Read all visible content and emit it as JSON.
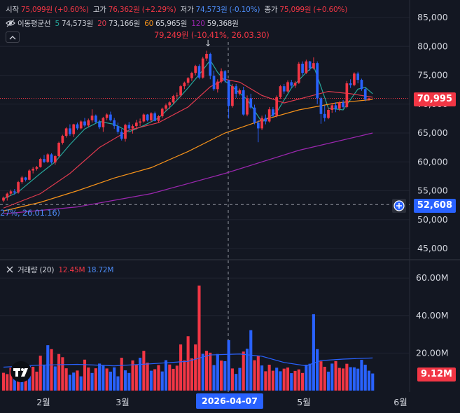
{
  "ohlc_legend": {
    "open_label": "시작",
    "open_value": "75,099원",
    "open_change": "(+0.60%)",
    "high_label": "고가",
    "high_value": "76,362원",
    "high_change": "(+2.29%)",
    "low_label": "저가",
    "low_value": "74,573원",
    "low_change": "(-0.10%)",
    "close_label": "종가",
    "close_value": "75,099원",
    "close_change": "(+0.60%)"
  },
  "ma_legend": {
    "label": "이동평균선",
    "ma5_period": "5",
    "ma5_value": "74,573원",
    "ma20_period": "20",
    "ma20_value": "73,166원",
    "ma60_period": "60",
    "ma60_value": "65,965원",
    "ma120_period": "120",
    "ma120_value": "59,368원"
  },
  "volume_legend": {
    "label": "거래량 (20)",
    "value1": "12.45M",
    "value2": "18.72M"
  },
  "annotations": {
    "high_marker": "79,249원 (-10.41%, 26.03.30)",
    "low_marker": "27%, 26.01.16)"
  },
  "price_tags": {
    "current": "70,995",
    "crosshair": "52,608",
    "volume_current": "9.12M"
  },
  "crosshair_date": "2026-04-07",
  "colors": {
    "background": "#131722",
    "up": "#f23645",
    "down": "#2962ff",
    "ma5": "#26a69a",
    "ma20": "#e03a4e",
    "ma60": "#f7931a",
    "ma120": "#9c27b0"
  },
  "chart_data": [
    {
      "type": "candlestick",
      "title": "",
      "y_axis_ticks": [
        "85,000",
        "80,000",
        "75,000",
        "70,000",
        "65,000",
        "60,000",
        "55,000",
        "50,000",
        "45,000"
      ],
      "ylim": [
        42500,
        87500
      ],
      "x_axis_ticks": [
        "2월",
        "3월",
        "5월",
        "6월"
      ],
      "series": [
        {
          "name": "이동평균선 5",
          "color": "#26a69a"
        },
        {
          "name": "20",
          "color": "#e03a4e"
        },
        {
          "name": "60",
          "color": "#f7931a"
        },
        {
          "name": "120",
          "color": "#9c27b0"
        }
      ],
      "candles": [
        [
          53300,
          54000,
          53000,
          53800
        ],
        [
          53800,
          54700,
          53300,
          54500
        ],
        [
          54500,
          55200,
          54100,
          54900
        ],
        [
          54900,
          55300,
          54300,
          54700
        ],
        [
          54700,
          56700,
          54500,
          56500
        ],
        [
          56500,
          57600,
          56200,
          57300
        ],
        [
          57300,
          57400,
          56600,
          56900
        ],
        [
          56900,
          58700,
          56800,
          58500
        ],
        [
          58500,
          59100,
          58000,
          58800
        ],
        [
          58800,
          59300,
          58500,
          59100
        ],
        [
          59100,
          60700,
          59000,
          60500
        ],
        [
          60500,
          61200,
          59800,
          60000
        ],
        [
          60000,
          61500,
          59800,
          61300
        ],
        [
          61300,
          61500,
          59700,
          59900
        ],
        [
          59900,
          61200,
          59500,
          61000
        ],
        [
          61000,
          63500,
          60800,
          63300
        ],
        [
          63300,
          64700,
          63000,
          64500
        ],
        [
          64500,
          66000,
          64200,
          65800
        ],
        [
          65800,
          66500,
          64500,
          64800
        ],
        [
          64800,
          66600,
          64300,
          66500
        ],
        [
          66500,
          66800,
          65500,
          65800
        ],
        [
          65800,
          67200,
          65600,
          67000
        ],
        [
          67000,
          67600,
          66000,
          66300
        ],
        [
          66300,
          67500,
          66000,
          67200
        ],
        [
          67200,
          69100,
          66800,
          68000
        ],
        [
          68000,
          68200,
          66700,
          66900
        ],
        [
          66900,
          67300,
          65700,
          66000
        ],
        [
          66000,
          67800,
          65200,
          67600
        ],
        [
          67600,
          68400,
          67200,
          68200
        ],
        [
          68200,
          68700,
          67000,
          67200
        ],
        [
          67200,
          67600,
          65700,
          66200
        ],
        [
          66200,
          66800,
          64800,
          65200
        ],
        [
          65200,
          65700,
          63700,
          64000
        ],
        [
          64000,
          66600,
          63500,
          66400
        ],
        [
          66400,
          66900,
          65400,
          65800
        ],
        [
          65800,
          66500,
          64900,
          66200
        ],
        [
          66200,
          67300,
          65600,
          66800
        ],
        [
          66800,
          67500,
          66200,
          67000
        ],
        [
          67000,
          68400,
          66800,
          68200
        ],
        [
          68200,
          68300,
          67000,
          67200
        ],
        [
          67200,
          68600,
          66900,
          68400
        ],
        [
          68400,
          68700,
          67000,
          67100
        ],
        [
          67100,
          68100,
          66800,
          67900
        ],
        [
          67900,
          69400,
          67600,
          69200
        ],
        [
          69200,
          70100,
          68800,
          69800
        ],
        [
          69800,
          70500,
          69200,
          70300
        ],
        [
          70300,
          71600,
          70000,
          71400
        ],
        [
          71400,
          72000,
          70800,
          71500
        ],
        [
          71500,
          73300,
          71200,
          73100
        ],
        [
          73100,
          73900,
          72600,
          73700
        ],
        [
          73700,
          74700,
          73200,
          74500
        ],
        [
          74500,
          75600,
          74000,
          75400
        ],
        [
          75400,
          76800,
          75000,
          76600
        ],
        [
          76600,
          76900,
          74300,
          74600
        ],
        [
          74600,
          78200,
          74400,
          77900
        ],
        [
          77900,
          79249,
          77500,
          78700
        ],
        [
          78700,
          78900,
          74300,
          74900
        ],
        [
          74900,
          75800,
          72300,
          72600
        ],
        [
          72600,
          74300,
          72000,
          73900
        ],
        [
          73900,
          76200,
          73600,
          75700
        ],
        [
          75700,
          75900,
          73700,
          74100
        ],
        [
          74100,
          74200,
          67500,
          69700
        ],
        [
          69700,
          73500,
          69400,
          73100
        ],
        [
          73100,
          73500,
          71100,
          71800
        ],
        [
          71800,
          72700,
          71500,
          72400
        ],
        [
          72400,
          73000,
          68000,
          68200
        ],
        [
          68200,
          71500,
          67900,
          71000
        ],
        [
          71000,
          71800,
          69100,
          69400
        ],
        [
          69400,
          69900,
          66500,
          66800
        ],
        [
          66800,
          67300,
          63400,
          65800
        ],
        [
          65800,
          68000,
          65500,
          67600
        ],
        [
          67600,
          68200,
          66500,
          67000
        ],
        [
          67000,
          69500,
          66800,
          69100
        ],
        [
          69100,
          69500,
          67800,
          68000
        ],
        [
          68000,
          71500,
          67700,
          71200
        ],
        [
          71200,
          73300,
          70900,
          73100
        ],
        [
          73100,
          73500,
          71800,
          72200
        ],
        [
          72200,
          74100,
          72000,
          73800
        ],
        [
          73800,
          74200,
          72800,
          73200
        ],
        [
          73200,
          74000,
          72800,
          73700
        ],
        [
          73700,
          77300,
          73500,
          77000
        ],
        [
          77000,
          77400,
          75000,
          75400
        ],
        [
          75400,
          77700,
          75200,
          77400
        ],
        [
          77400,
          77500,
          75800,
          76200
        ],
        [
          76200,
          78100,
          76000,
          77100
        ],
        [
          77100,
          77400,
          70000,
          71000
        ],
        [
          71000,
          71300,
          66600,
          68300
        ],
        [
          68300,
          69800,
          67000,
          67600
        ],
        [
          67600,
          69400,
          67400,
          69000
        ],
        [
          69000,
          70200,
          68500,
          69800
        ],
        [
          69800,
          70300,
          68600,
          69200
        ],
        [
          69200,
          70500,
          68800,
          70300
        ],
        [
          70300,
          70700,
          69200,
          69500
        ],
        [
          69500,
          74000,
          69300,
          73600
        ],
        [
          73600,
          74300,
          72800,
          73300
        ],
        [
          73300,
          75500,
          73100,
          75300
        ],
        [
          75300,
          75600,
          73600,
          74200
        ],
        [
          74200,
          74400,
          72300,
          72600
        ],
        [
          72600,
          72900,
          70500,
          70800
        ],
        [
          70800,
          71100,
          70600,
          70995
        ]
      ],
      "moving_averages": {
        "ma5": [
          [
            0,
            53600
          ],
          [
            4,
            54800
          ],
          [
            10,
            58000
          ],
          [
            14,
            60000
          ],
          [
            18,
            63000
          ],
          [
            22,
            65700
          ],
          [
            26,
            67000
          ],
          [
            30,
            66500
          ],
          [
            34,
            65200
          ],
          [
            38,
            66300
          ],
          [
            42,
            67600
          ],
          [
            46,
            70000
          ],
          [
            50,
            72800
          ],
          [
            54,
            75900
          ],
          [
            56,
            77600
          ],
          [
            58,
            75500
          ],
          [
            60,
            74000
          ],
          [
            62,
            73000
          ],
          [
            66,
            70800
          ],
          [
            70,
            66900
          ],
          [
            74,
            68600
          ],
          [
            78,
            72800
          ],
          [
            82,
            75500
          ],
          [
            84,
            76600
          ],
          [
            86,
            73000
          ],
          [
            88,
            69300
          ],
          [
            92,
            69000
          ],
          [
            96,
            72600
          ],
          [
            98,
            72900
          ],
          [
            100,
            71800
          ]
        ],
        "ma20": [
          [
            0,
            52000
          ],
          [
            10,
            54500
          ],
          [
            18,
            58000
          ],
          [
            26,
            62500
          ],
          [
            34,
            65500
          ],
          [
            42,
            66800
          ],
          [
            50,
            69500
          ],
          [
            56,
            73000
          ],
          [
            60,
            74300
          ],
          [
            64,
            73800
          ],
          [
            70,
            71500
          ],
          [
            76,
            70200
          ],
          [
            82,
            71200
          ],
          [
            88,
            72200
          ],
          [
            94,
            71800
          ],
          [
            100,
            71200
          ]
        ],
        "ma60": [
          [
            0,
            51500
          ],
          [
            10,
            53000
          ],
          [
            20,
            55000
          ],
          [
            30,
            57200
          ],
          [
            40,
            59000
          ],
          [
            50,
            61800
          ],
          [
            60,
            65000
          ],
          [
            70,
            67200
          ],
          [
            80,
            69000
          ],
          [
            90,
            70200
          ],
          [
            100,
            70800
          ]
        ],
        "ma120": [
          [
            0,
            51000
          ],
          [
            20,
            52200
          ],
          [
            40,
            54500
          ],
          [
            60,
            58000
          ],
          [
            80,
            62000
          ],
          [
            100,
            65000
          ]
        ]
      }
    },
    {
      "type": "bar",
      "title": "거래량 (20)",
      "y_axis_ticks": [
        "60.00M",
        "40.00M",
        "20.00M"
      ],
      "ylim": [
        0,
        69000000
      ],
      "values": [
        9.5,
        8.8,
        12.1,
        9.7,
        13.3,
        11.8,
        10.3,
        13.1,
        12.7,
        10.1,
        18.6,
        13.4,
        24.2,
        22.1,
        12.9,
        19.5,
        17.8,
        11.9,
        8.4,
        9.6,
        10.7,
        7.6,
        16.5,
        12.3,
        9.4,
        11.9,
        14.4,
        13.5,
        11.8,
        10.1,
        12.4,
        7.6,
        17.5,
        10.8,
        9.4,
        16.1,
        13.7,
        17.5,
        21.2,
        14.9,
        10.6,
        11.4,
        13.6,
        10.2,
        16.2,
        13.9,
        11.6,
        13.3,
        24.6,
        16.1,
        29.0,
        17.2,
        24.6,
        56.0,
        19.6,
        21.2,
        20.2,
        13.6,
        19.5,
        16.0,
        15.7,
        26.9,
        11.8,
        8.9,
        12.1,
        20.8,
        22.3,
        32.2,
        16.2,
        18.6,
        13.4,
        10.3,
        13.8,
        10.6,
        12.2,
        10.3,
        11.7,
        12.3,
        9.3,
        10.5,
        11.3,
        9.4,
        13.8,
        14.3,
        40.7,
        22.1,
        15.6,
        12.7,
        10.1,
        14.4,
        15.7,
        12.1,
        11.8,
        14.3,
        12.5,
        12.4,
        11.7,
        16.4,
        13.8,
        10.6,
        9.12
      ],
      "directions": "uuudududuuudduduuudduduududdudddudduuduuduudduuuuuuuuuduuddudduddudduuduuudduuduuudddduudduuuudddd",
      "ma20_line": [
        [
          0,
          12.5
        ],
        [
          10,
          13.6
        ],
        [
          20,
          14.0
        ],
        [
          30,
          13.2
        ],
        [
          40,
          14.3
        ],
        [
          50,
          15.6
        ],
        [
          56,
          19.0
        ],
        [
          64,
          19.5
        ],
        [
          70,
          18.3
        ],
        [
          76,
          15.0
        ],
        [
          82,
          13.2
        ],
        [
          86,
          16.0
        ],
        [
          92,
          16.8
        ],
        [
          100,
          17.4
        ]
      ]
    }
  ]
}
